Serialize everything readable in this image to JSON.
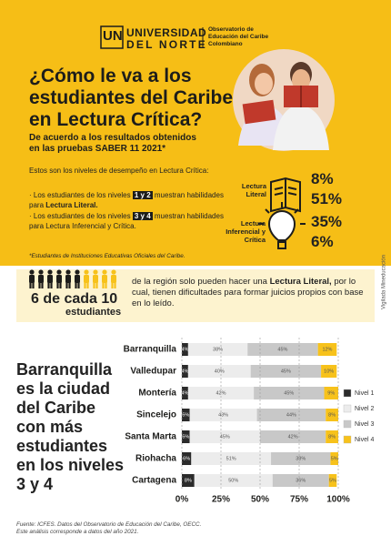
{
  "header": {
    "logo_mark": "UN",
    "university": [
      "UNIVERSIDAD",
      "DEL NORTE"
    ],
    "observatory": [
      "Observatorio de",
      "Educación del Caribe",
      "Colombiano"
    ]
  },
  "title": [
    "¿Cómo le va a los",
    "estudiantes del Caribe",
    "en Lectura Crítica?"
  ],
  "subtitle": [
    "De acuerdo a los resultados obtenidos",
    "en las pruebas SABER 11 2021*"
  ],
  "levels_intro": "Estos son los niveles de desempeño en Lectura Crítica:",
  "bullets": [
    [
      "Los estudiantes de los niveles",
      "1 y 2",
      "muestran habilidades para",
      "Lectura Literal."
    ],
    [
      "Los estudiantes de los niveles",
      "3 y 4",
      "muestran habilidades para Lectura Inferencial y Crítica."
    ]
  ],
  "sample_note": "*Estudiantes de Instituciones Educativas Oficiales del Caribe.",
  "stats": [
    {
      "label": "Lectura Literal",
      "values": [
        "8%",
        "51%"
      ]
    },
    {
      "label": "Lectura Inferencial y Crítica",
      "values": [
        "35%",
        "6%"
      ]
    }
  ],
  "highlight": {
    "headline": [
      "6 de cada 10",
      "estudiantes"
    ],
    "text": [
      "de la región solo pueden hacer una",
      "Lectura Literal,",
      "por lo cual, tienen dificultades para formar juicios propios con base en lo leído."
    ]
  },
  "side_note": "Vigilada Mineducación",
  "conclusion": "Barranquilla es la ciudad del Caribe con más estudiantes en los niveles 3 y 4",
  "source": [
    "Fuente: ICFES. Datos del Observatorio de Educación del Caribe, OECC.",
    "Este análisis corresponde a datos del año 2021."
  ],
  "chart_data": {
    "type": "stacked_bar",
    "orientation": "horizontal",
    "categories": [
      "Barranquilla",
      "Valledupar",
      "Montería",
      "Sincelejo",
      "Santa Marta",
      "Riohacha",
      "Cartagena"
    ],
    "series": [
      {
        "name": "Nivel 1",
        "color": "#2b2b2b",
        "values": [
          4,
          4,
          4,
          5,
          5,
          6,
          8
        ],
        "value_labels": [
          "4%",
          "4%",
          "4%",
          "5%",
          "5%",
          "6%",
          "8%"
        ]
      },
      {
        "name": "Nivel 2",
        "color": "#ececec",
        "values": [
          38,
          40,
          42,
          43,
          45,
          51,
          50
        ],
        "value_labels": [
          "38%",
          "40%",
          "42%",
          "43%",
          "45%",
          "51%",
          "50%"
        ]
      },
      {
        "name": "Nivel 3",
        "color": "#c8c8c8",
        "values": [
          45,
          45,
          45,
          44,
          42,
          38,
          36
        ],
        "value_labels": [
          "45%",
          "45%",
          "45%",
          "44%",
          "42%",
          "38%",
          "36%"
        ]
      },
      {
        "name": "Nivel 4",
        "color": "#f7c21b",
        "values": [
          12,
          10,
          9,
          8,
          8,
          5,
          5
        ],
        "value_labels": [
          "12%",
          "10%",
          "9%",
          "8%",
          "8%",
          "5%",
          "5%"
        ]
      }
    ],
    "xlim": [
      0,
      100
    ],
    "xticks": [
      {
        "value": 0,
        "label": "0%"
      },
      {
        "value": 25,
        "label": "25%"
      },
      {
        "value": 50,
        "label": "50%"
      },
      {
        "value": 75,
        "label": "75%"
      },
      {
        "value": 100,
        "label": "100%"
      }
    ],
    "grid": true,
    "legend": "right"
  }
}
